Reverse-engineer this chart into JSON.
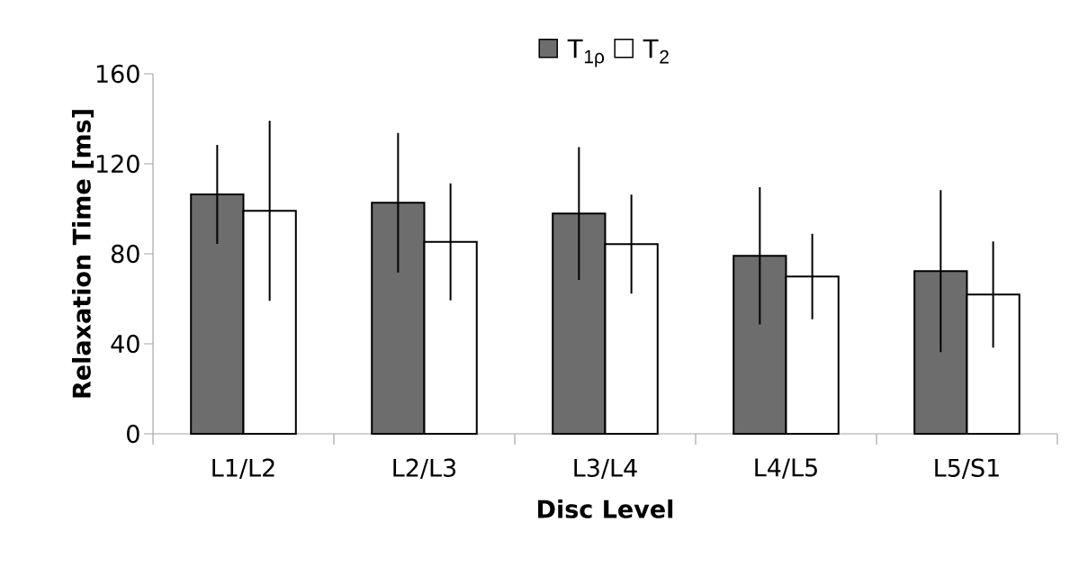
{
  "chart_data": {
    "type": "bar",
    "xlabel": "Disc Level",
    "ylabel": "Relaxation Time [ms]",
    "categories": [
      "L1/L2",
      "L2/L3",
      "L3/L4",
      "L4/L5",
      "L5/S1"
    ],
    "series": [
      {
        "name": "T$_{1ρ}$",
        "color": "#6d6d6d",
        "values": [
          106.4,
          102.7,
          97.9,
          79.1,
          72.3
        ],
        "errors": [
          22,
          31,
          29.5,
          30.5,
          36
        ]
      },
      {
        "name": "T$_{2}$",
        "color": "#ffffff",
        "values": [
          99.1,
          85.3,
          84.3,
          69.9,
          61.9
        ],
        "errors": [
          40,
          26,
          22,
          19,
          23.6
        ]
      }
    ],
    "ylim": [
      0,
      160
    ],
    "yticks": [
      0,
      40,
      80,
      120,
      160
    ],
    "grid": false,
    "legend": "top"
  }
}
